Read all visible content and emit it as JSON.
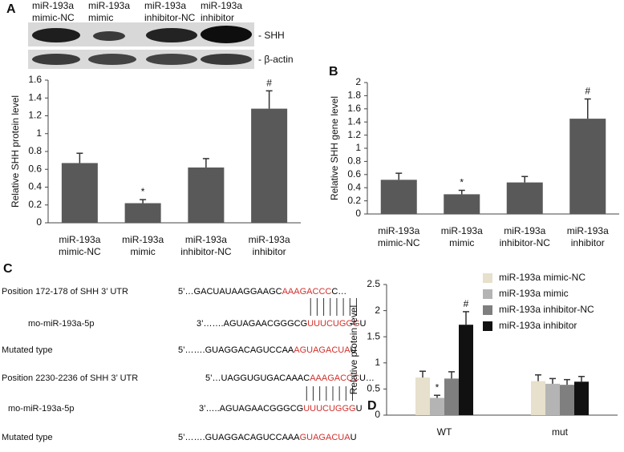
{
  "chart_data": [
    {
      "type": "bar",
      "panel": "A",
      "y_label": "Relative SHH protein level",
      "blot_lanes": [
        [
          "miR-193a",
          "mimic-NC"
        ],
        [
          "miR-193a",
          "mimic"
        ],
        [
          "miR-193a",
          "inhibitor-NC"
        ],
        [
          "miR-193a",
          "inhibitor"
        ]
      ],
      "blot_rows": [
        "- SHH",
        "- β-actin"
      ],
      "categories": [
        [
          "miR-193a",
          "mimic-NC"
        ],
        [
          "miR-193a",
          "mimic"
        ],
        [
          "miR-193a",
          "inhibitor-NC"
        ],
        [
          "miR-193a",
          "inhibitor"
        ]
      ],
      "values": [
        0.67,
        0.22,
        0.62,
        1.28
      ],
      "errors": [
        0.11,
        0.04,
        0.1,
        0.2
      ],
      "significance": [
        null,
        "*",
        null,
        "#"
      ],
      "color": "#595959",
      "ylim": [
        0,
        1.6
      ],
      "yticks": [
        0,
        0.2,
        0.4,
        0.6,
        0.8,
        1,
        1.2,
        1.4,
        1.6
      ]
    },
    {
      "type": "bar",
      "panel": "B",
      "y_label": "Relative SHH gene level",
      "categories": [
        [
          "miR-193a",
          "mimic-NC"
        ],
        [
          "miR-193a",
          "mimic"
        ],
        [
          "miR-193a",
          "inhibitor-NC"
        ],
        [
          "miR-193a",
          "inhibitor"
        ]
      ],
      "values": [
        0.52,
        0.3,
        0.48,
        1.45
      ],
      "errors": [
        0.1,
        0.06,
        0.09,
        0.3
      ],
      "significance": [
        null,
        "*",
        null,
        "#"
      ],
      "color": "#595959",
      "ylim": [
        0,
        2
      ],
      "yticks": [
        0,
        0.2,
        0.4,
        0.6,
        0.8,
        1,
        1.2,
        1.4,
        1.6,
        1.8,
        2
      ]
    },
    {
      "type": "grouped_bar",
      "panel": "D",
      "y_label": "Relative protein level",
      "categories": [
        "WT",
        "mut"
      ],
      "legend": "upper right",
      "series": [
        {
          "name": "miR-193a mimic-NC",
          "color": "#e6e0cc",
          "values": [
            0.72,
            0.65
          ],
          "errors": [
            0.12,
            0.12
          ],
          "significance": [
            null,
            null
          ]
        },
        {
          "name": "miR-193a mimic",
          "color": "#b4b4b4",
          "values": [
            0.33,
            0.6
          ],
          "errors": [
            0.05,
            0.1
          ],
          "significance": [
            "*",
            null
          ]
        },
        {
          "name": "miR-193a inhibitor-NC",
          "color": "#7f7f7f",
          "values": [
            0.7,
            0.58
          ],
          "errors": [
            0.13,
            0.1
          ],
          "significance": [
            null,
            null
          ]
        },
        {
          "name": "miR-193a inhibitor",
          "color": "#111111",
          "values": [
            1.73,
            0.64
          ],
          "errors": [
            0.25,
            0.1
          ],
          "significance": [
            "#",
            null
          ]
        }
      ],
      "ylim": [
        0,
        2.5
      ],
      "yticks": [
        0,
        0.5,
        1,
        1.5,
        2,
        2.5
      ]
    }
  ],
  "sequence_panel": {
    "panel": "C",
    "rows": [
      {
        "label": "Position 172-178 of SHH 3’ UTR",
        "parts": [
          {
            "text": "5’…GACUAUAAGGAAGC",
            "color": "#000000"
          },
          {
            "text": "AAAGACCC",
            "color": "#d0302c"
          },
          {
            "text": "C…",
            "color": "#000000"
          }
        ]
      },
      {
        "label": "mo-miR-193a-5p",
        "parts": [
          {
            "text": "3’…….AGUAGAACGGGCG",
            "color": "#000000"
          },
          {
            "text": "UUUCUGGG",
            "color": "#d0302c"
          },
          {
            "text": "U",
            "color": "#000000"
          }
        ]
      },
      {
        "label": "Mutated type",
        "parts": [
          {
            "text": "5’…….GUAGGACAGUCCAA",
            "color": "#000000"
          },
          {
            "text": "AGUAGACUA",
            "color": "#d0302c"
          },
          {
            "text": "U",
            "color": "#000000"
          }
        ]
      },
      {
        "label": "Position 2230-2236 of SHH 3’ UTR",
        "parts": [
          {
            "text": "5’…UAGGUGUGACAAAC",
            "color": "#000000"
          },
          {
            "text": "AAAGACCC",
            "color": "#d0302c"
          },
          {
            "text": "U…",
            "color": "#000000"
          }
        ]
      },
      {
        "label": "mo-miR-193a-5p",
        "parts": [
          {
            "text": "3’…..AGUAGAACGGGCG",
            "color": "#000000"
          },
          {
            "text": "UUUCUGGG",
            "color": "#d0302c"
          },
          {
            "text": "U",
            "color": "#000000"
          }
        ]
      },
      {
        "label": "Mutated type",
        "parts": [
          {
            "text": "5’…….GUAGGACAGUCCAAA",
            "color": "#000000"
          },
          {
            "text": "GUAGACUA",
            "color": "#d0302c"
          },
          {
            "text": "U",
            "color": "#000000"
          }
        ]
      }
    ]
  }
}
